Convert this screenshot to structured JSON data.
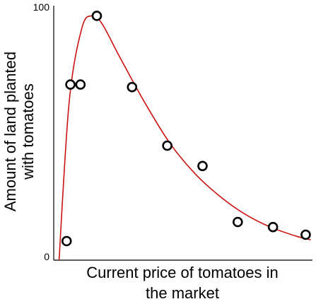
{
  "chart_data": {
    "type": "scatter",
    "title": "",
    "xlabel": [
      "Current price of tomatoes in",
      "the market"
    ],
    "ylabel": [
      "Amount of land planted",
      "with tomatoes"
    ],
    "ylim": [
      0,
      100
    ],
    "xlim": [
      0,
      100
    ],
    "yticks": [
      "100",
      "0"
    ],
    "grid": false,
    "legend": "none",
    "point_color": "#000000",
    "curve_color": "#cc1111",
    "points": [
      {
        "x": 4,
        "y": 7.5
      },
      {
        "x": 5.5,
        "y": 69
      },
      {
        "x": 9.5,
        "y": 69
      },
      {
        "x": 16,
        "y": 96
      },
      {
        "x": 30,
        "y": 68
      },
      {
        "x": 44,
        "y": 45
      },
      {
        "x": 58,
        "y": 37
      },
      {
        "x": 72,
        "y": 15
      },
      {
        "x": 86,
        "y": 13
      },
      {
        "x": 99,
        "y": 10
      }
    ],
    "curve": [
      {
        "x": 1,
        "y": 0
      },
      {
        "x": 5,
        "y": 62
      },
      {
        "x": 10,
        "y": 91
      },
      {
        "x": 14,
        "y": 96
      },
      {
        "x": 18,
        "y": 93
      },
      {
        "x": 25,
        "y": 80
      },
      {
        "x": 35,
        "y": 62
      },
      {
        "x": 45,
        "y": 46
      },
      {
        "x": 55,
        "y": 34
      },
      {
        "x": 65,
        "y": 25
      },
      {
        "x": 75,
        "y": 18
      },
      {
        "x": 85,
        "y": 13
      },
      {
        "x": 95,
        "y": 9.5
      },
      {
        "x": 101,
        "y": 8
      }
    ]
  }
}
